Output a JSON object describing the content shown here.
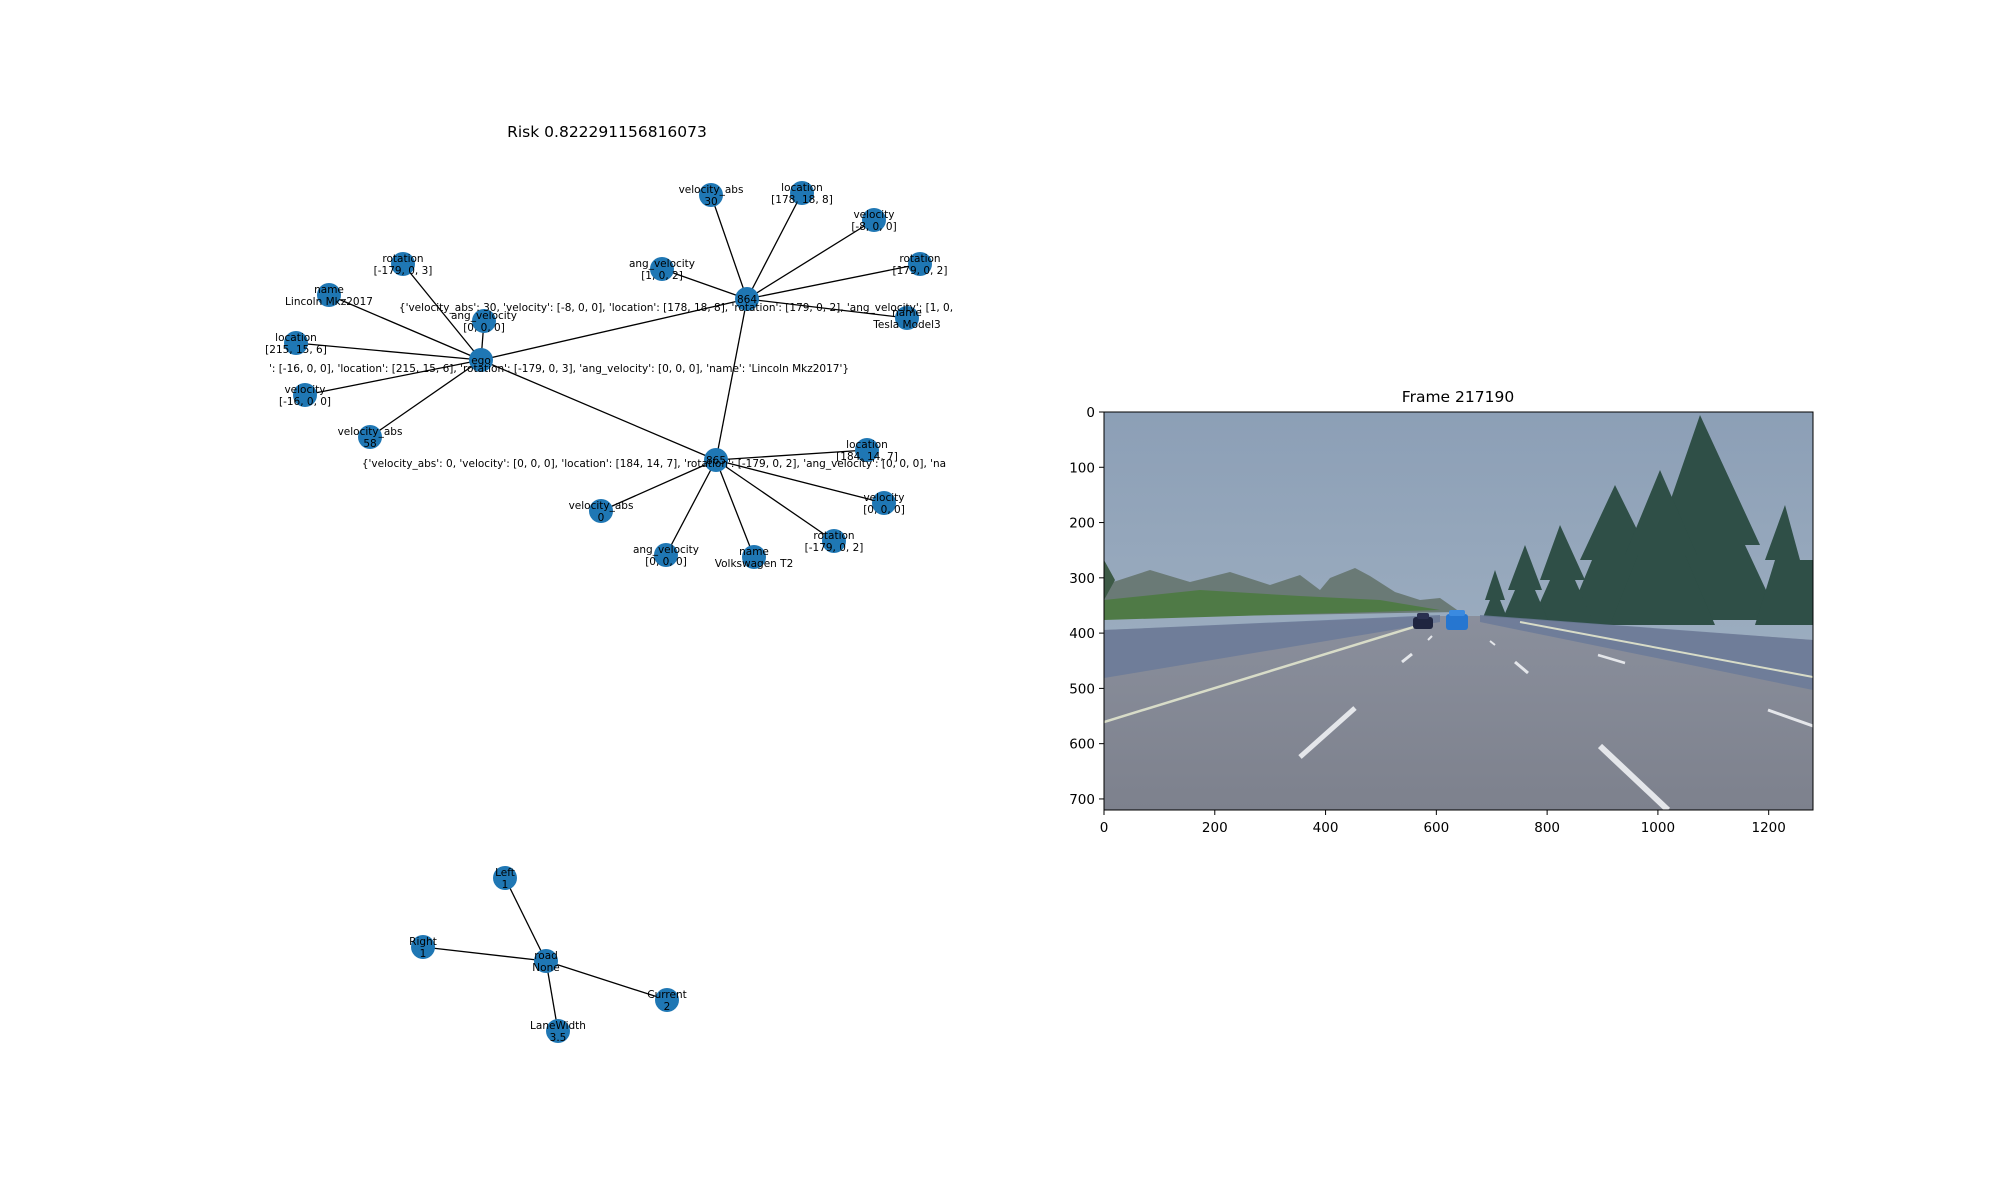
{
  "risk_title": "Risk 0.822291156816073",
  "frame_title": "Frame 217190",
  "colors": {
    "node": "#1f77b4",
    "edge": "#000000"
  },
  "scene_graph": {
    "nodes": [
      {
        "id": "ego",
        "lines": [
          "ego"
        ]
      },
      {
        "id": "864",
        "lines": [
          "864"
        ]
      },
      {
        "id": "865",
        "lines": [
          "865"
        ]
      },
      {
        "id": "ego_rotation",
        "lines": [
          "rotation",
          "[-179, 0, 3]"
        ]
      },
      {
        "id": "ego_name",
        "lines": [
          "name",
          "Lincoln Mkz2017"
        ]
      },
      {
        "id": "ego_angvel",
        "lines": [
          "ang_velocity",
          "[0, 0, 0]"
        ]
      },
      {
        "id": "ego_location",
        "lines": [
          "location",
          "[215, 15, 6]"
        ]
      },
      {
        "id": "ego_velocity",
        "lines": [
          "velocity",
          "[-16, 0, 0]"
        ]
      },
      {
        "id": "ego_vabs",
        "lines": [
          "velocity_abs",
          "58"
        ]
      },
      {
        "id": "c864_vabs",
        "lines": [
          "velocity_abs",
          "30"
        ]
      },
      {
        "id": "c864_location",
        "lines": [
          "location",
          "[178, 18, 8]"
        ]
      },
      {
        "id": "c864_velocity",
        "lines": [
          "velocity",
          "[-8, 0, 0]"
        ]
      },
      {
        "id": "c864_angvel",
        "lines": [
          "ang_velocity",
          "[1, 0, 2]"
        ]
      },
      {
        "id": "c864_rotation",
        "lines": [
          "rotation",
          "[179, 0, 2]"
        ]
      },
      {
        "id": "c864_name",
        "lines": [
          "name",
          "Tesla Model3"
        ]
      },
      {
        "id": "c865_location",
        "lines": [
          "location",
          "[184, 14, 7]"
        ]
      },
      {
        "id": "c865_velocity",
        "lines": [
          "velocity",
          "[0, 0, 0]"
        ]
      },
      {
        "id": "c865_vabs",
        "lines": [
          "velocity_abs",
          "0"
        ]
      },
      {
        "id": "c865_angvel",
        "lines": [
          "ang_velocity",
          "[0, 0, 0]"
        ]
      },
      {
        "id": "c865_name",
        "lines": [
          "name",
          "Volkswagen T2"
        ]
      },
      {
        "id": "c865_rotation",
        "lines": [
          "rotation",
          "[-179, 0, 2]"
        ]
      }
    ],
    "edges": [
      [
        "ego",
        "864"
      ],
      [
        "ego",
        "865"
      ],
      [
        "864",
        "865"
      ],
      [
        "ego",
        "ego_rotation"
      ],
      [
        "ego",
        "ego_name"
      ],
      [
        "ego",
        "ego_angvel"
      ],
      [
        "ego",
        "ego_location"
      ],
      [
        "ego",
        "ego_velocity"
      ],
      [
        "ego",
        "ego_vabs"
      ],
      [
        "864",
        "c864_vabs"
      ],
      [
        "864",
        "c864_location"
      ],
      [
        "864",
        "c864_velocity"
      ],
      [
        "864",
        "c864_angvel"
      ],
      [
        "864",
        "c864_rotation"
      ],
      [
        "864",
        "c864_name"
      ],
      [
        "865",
        "c865_location"
      ],
      [
        "865",
        "c865_velocity"
      ],
      [
        "865",
        "c865_vabs"
      ],
      [
        "865",
        "c865_angvel"
      ],
      [
        "865",
        "c865_name"
      ],
      [
        "865",
        "c865_rotation"
      ]
    ],
    "attr_strings": [
      {
        "id": "attr_864",
        "text": "{'velocity_abs': 30, 'velocity': [-8, 0, 0], 'location': [178, 18, 8], 'rotation': [179, 0, 2], 'ang_velocity': [1, 0,"
      },
      {
        "id": "attr_ego",
        "text": "': [-16, 0, 0], 'location': [215, 15, 6], 'rotation': [-179, 0, 3], 'ang_velocity': [0, 0, 0], 'name': 'Lincoln Mkz2017'}"
      },
      {
        "id": "attr_865",
        "text": "{'velocity_abs': 0, 'velocity': [0, 0, 0], 'location': [184, 14, 7], 'rotation': [-179, 0, 2], 'ang_velocity': [0, 0, 0], 'na"
      }
    ]
  },
  "road_graph": {
    "nodes": [
      {
        "id": "road",
        "lines": [
          "road",
          "None"
        ]
      },
      {
        "id": "left",
        "lines": [
          "Left",
          "1"
        ]
      },
      {
        "id": "right",
        "lines": [
          "Right",
          "1"
        ]
      },
      {
        "id": "current",
        "lines": [
          "Current",
          "2"
        ]
      },
      {
        "id": "lanewidth",
        "lines": [
          "LaneWidth",
          "3.5"
        ]
      }
    ],
    "edges": [
      [
        "road",
        "left"
      ],
      [
        "road",
        "right"
      ],
      [
        "road",
        "current"
      ],
      [
        "road",
        "lanewidth"
      ]
    ]
  },
  "frame_axes": {
    "xticks": [
      "0",
      "200",
      "400",
      "600",
      "800",
      "1000",
      "1200"
    ],
    "yticks": [
      "0",
      "100",
      "200",
      "300",
      "400",
      "500",
      "600",
      "700"
    ]
  }
}
